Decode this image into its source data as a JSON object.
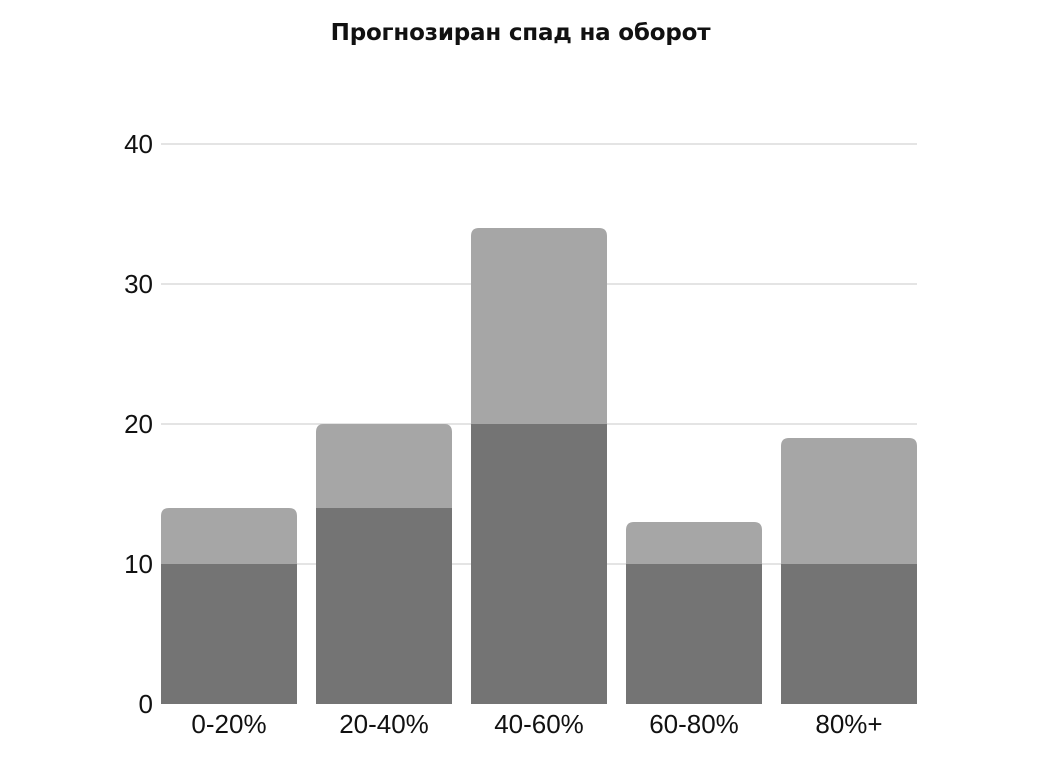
{
  "chart_data": {
    "type": "bar",
    "stacked": true,
    "title": "Прогнозиран спад на оборот",
    "xlabel": "",
    "ylabel": "",
    "categories": [
      "0-20%",
      "20-40%",
      "40-60%",
      "60-80%",
      "80%+"
    ],
    "series": [
      {
        "values": [
          10,
          14,
          20,
          10,
          10
        ],
        "color": "#747474"
      },
      {
        "values": [
          4,
          6,
          14,
          3,
          9
        ],
        "color": "#a6a6a6"
      }
    ],
    "ylim": [
      0,
      40
    ],
    "yticks": [
      0,
      10,
      20,
      30,
      40
    ],
    "grid": true,
    "legend": "none"
  }
}
